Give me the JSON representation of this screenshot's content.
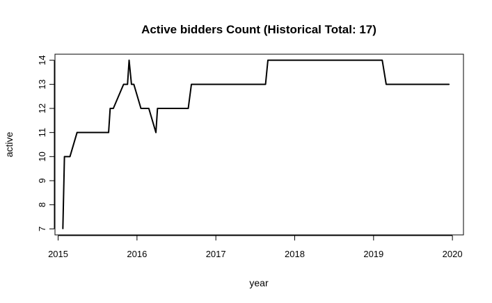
{
  "chart_data": {
    "type": "line",
    "title": "Active bidders Count (Historical Total: 17)",
    "xlabel": "year",
    "ylabel": "active",
    "xlim": [
      2014.96,
      2020.14
    ],
    "ylim": [
      6.75,
      14.25
    ],
    "x_ticks": [
      2015,
      2016,
      2017,
      2018,
      2019,
      2020
    ],
    "y_ticks": [
      7,
      8,
      9,
      10,
      11,
      12,
      13,
      14
    ],
    "grid": false,
    "series": [
      {
        "color": "#000000",
        "x": [
          2015.06,
          2015.08,
          2015.15,
          2015.24,
          2015.64,
          2015.66,
          2015.7,
          2015.83,
          2015.88,
          2015.9,
          2015.93,
          2015.96,
          2016.05,
          2016.15,
          2016.24,
          2016.26,
          2016.65,
          2016.69,
          2017.63,
          2017.66,
          2019.11,
          2019.16,
          2019.96
        ],
        "y": [
          7,
          10,
          10,
          11,
          11,
          12,
          12,
          13,
          13,
          14,
          13,
          13,
          12,
          12,
          11,
          12,
          12,
          13,
          13,
          14,
          14,
          13,
          13
        ]
      }
    ]
  }
}
